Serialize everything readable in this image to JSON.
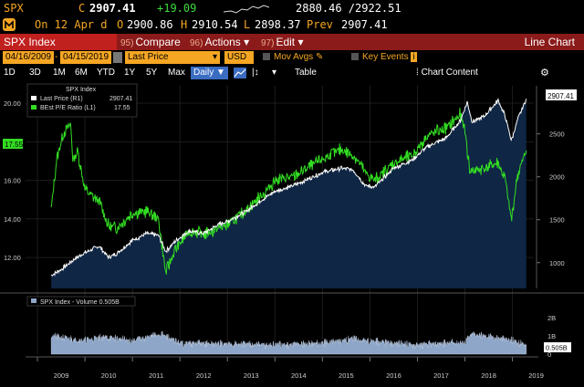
{
  "quote": {
    "ticker": "SPX",
    "flag": "C",
    "last": "2907.41",
    "change": "+19.09",
    "range": "2880.46 /2922.51",
    "on_date": "On 12 Apr d",
    "open_label": "O",
    "open": "2900.86",
    "high_label": "H",
    "high": "2910.54",
    "low_label": "L",
    "low": "2898.37",
    "prev_label": "Prev",
    "prev": "2907.41"
  },
  "toolbar": {
    "security": "SPX Index",
    "compare_num": "95)",
    "compare": "Compare",
    "actions_num": "96)",
    "actions": "Actions ▾",
    "edit_num": "97)",
    "edit": "Edit ▾",
    "view_title": "Line Chart"
  },
  "settings": {
    "start_date": "04/16/2009",
    "end_date": "04/15/2019",
    "price_field": "Last Price",
    "currency": "USD",
    "mov_avgs": "Mov Avgs",
    "key_events": "Key Events"
  },
  "periods": {
    "items": [
      "1D",
      "3D",
      "1M",
      "6M",
      "YTD",
      "1Y",
      "5Y",
      "Max"
    ],
    "frequency": "Daily ▼",
    "table": "Table",
    "chart_content": "Chart Content"
  },
  "legend": {
    "title": "SPX Index",
    "line1_label": "Last Price  (R1)",
    "line1_value": "2907.41",
    "line2_label": "BEst P/E Ratio  (L1)",
    "line2_value": "17.55"
  },
  "volume_legend": "SPX Index - Volume 0.505B",
  "tags": {
    "price_tag": "2907.41",
    "pe_tag": "17.55",
    "vol_tag": "0.505B"
  },
  "colors": {
    "price_line": "#ffffff",
    "pe_line": "#33dd22",
    "area_fill": "#0f2644",
    "volume_fill": "#8ea6c8",
    "accent_amber": "#f5a623",
    "bar_red": "#8b1a1a"
  },
  "chart_data": {
    "type": "line",
    "x": [
      "2009",
      "2010",
      "2011",
      "2012",
      "2013",
      "2014",
      "2015",
      "2016",
      "2017",
      "2018",
      "2019"
    ],
    "left_axis": {
      "ticks": [
        "20.00",
        "18.00",
        "16.00",
        "14.00",
        "12.00"
      ],
      "ylim": [
        10.4,
        20.9
      ]
    },
    "right_axis": {
      "ticks": [
        "2500",
        "2000",
        "1500",
        "1000"
      ],
      "ylim": [
        700,
        3060
      ]
    },
    "volume_axis": {
      "ticks": [
        "2B",
        "1B",
        "0"
      ],
      "ylim": [
        0,
        2.6
      ]
    },
    "series": [
      {
        "name": "Last Price (R1)",
        "axis": "right",
        "x": [
          2009.29,
          2009.5,
          2009.8,
          2010.0,
          2010.3,
          2010.5,
          2010.7,
          2011.0,
          2011.3,
          2011.55,
          2011.7,
          2011.9,
          2012.2,
          2012.5,
          2012.8,
          2013.0,
          2013.4,
          2013.8,
          2014.0,
          2014.4,
          2014.8,
          2015.0,
          2015.4,
          2015.65,
          2015.9,
          2016.1,
          2016.5,
          2016.9,
          2017.2,
          2017.6,
          2017.9,
          2018.05,
          2018.15,
          2018.4,
          2018.7,
          2018.85,
          2018.98,
          2019.1,
          2019.29
        ],
        "values": [
          850,
          920,
          1050,
          1115,
          1190,
          1060,
          1120,
          1260,
          1340,
          1320,
          1130,
          1250,
          1370,
          1340,
          1440,
          1480,
          1600,
          1760,
          1830,
          1900,
          2000,
          2050,
          2100,
          2080,
          1900,
          1880,
          2100,
          2200,
          2350,
          2450,
          2650,
          2870,
          2640,
          2700,
          2890,
          2700,
          2420,
          2650,
          2907
        ]
      },
      {
        "name": "BEst P/E Ratio (L1)",
        "axis": "left",
        "x": [
          2009.29,
          2009.4,
          2009.55,
          2009.7,
          2009.75,
          2009.85,
          2010.0,
          2010.3,
          2010.5,
          2010.7,
          2011.0,
          2011.3,
          2011.55,
          2011.7,
          2011.9,
          2012.2,
          2012.5,
          2012.8,
          2013.0,
          2013.4,
          2013.8,
          2014.0,
          2014.4,
          2014.8,
          2015.0,
          2015.4,
          2015.7,
          2015.9,
          2016.1,
          2016.5,
          2016.9,
          2017.2,
          2017.6,
          2017.9,
          2018.0,
          2018.1,
          2018.4,
          2018.7,
          2018.85,
          2018.98,
          2019.1,
          2019.29
        ],
        "values": [
          14.5,
          17.0,
          18.5,
          18.9,
          17.0,
          17.5,
          15.5,
          14.9,
          13.6,
          13.6,
          14.3,
          14.4,
          14.0,
          11.2,
          12.4,
          13.4,
          13.2,
          13.5,
          13.7,
          14.5,
          15.4,
          16.0,
          16.2,
          16.8,
          17.1,
          17.6,
          17.2,
          16.4,
          16.0,
          16.9,
          17.3,
          18.3,
          18.7,
          19.4,
          18.6,
          16.5,
          16.6,
          16.9,
          16.0,
          13.9,
          16.2,
          17.55
        ]
      }
    ],
    "volume": {
      "x": [
        2009.29,
        2009.5,
        2010.0,
        2010.4,
        2011.0,
        2011.6,
        2012.0,
        2013.0,
        2014.0,
        2015.0,
        2015.65,
        2016.0,
        2017.0,
        2018.0,
        2018.15,
        2019.0,
        2019.29
      ],
      "values": [
        1.0,
        0.9,
        0.75,
        0.95,
        0.72,
        1.1,
        0.6,
        0.55,
        0.5,
        0.6,
        0.85,
        0.7,
        0.5,
        0.65,
        1.1,
        0.75,
        0.51
      ]
    }
  }
}
